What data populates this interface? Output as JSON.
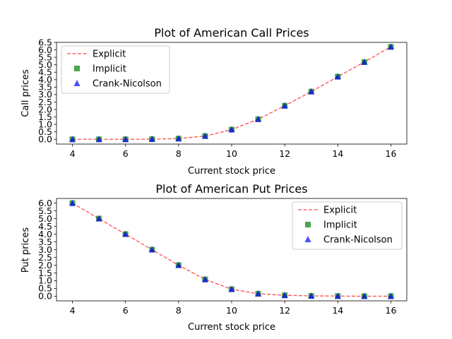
{
  "chart_data": [
    {
      "type": "line",
      "title": "Plot of American Call Prices",
      "xlabel": "Current stock price",
      "ylabel": "Call prices",
      "xlim": [
        3.4,
        16.6
      ],
      "ylim": [
        -0.32,
        6.5
      ],
      "xticks": [
        4,
        6,
        8,
        10,
        12,
        14,
        16
      ],
      "yticks": [
        0.0,
        0.5,
        1.0,
        1.5,
        2.0,
        2.5,
        3.0,
        3.5,
        4.0,
        4.5,
        5.0,
        5.5,
        6.0,
        6.5
      ],
      "grid": false,
      "legend_position": "top-left",
      "x": [
        4,
        5,
        6,
        7,
        8,
        9,
        10,
        11,
        12,
        13,
        14,
        15,
        16
      ],
      "series": [
        {
          "name": "Explicit",
          "style": "dashed-line",
          "color": "#ff0000",
          "values": [
            0.0,
            0.0,
            0.0,
            0.01,
            0.05,
            0.22,
            0.65,
            1.35,
            2.25,
            3.2,
            4.2,
            5.18,
            6.2
          ]
        },
        {
          "name": "Implicit",
          "style": "square-marker",
          "color": "#008000",
          "values": [
            0.0,
            0.0,
            0.0,
            0.01,
            0.05,
            0.22,
            0.65,
            1.35,
            2.25,
            3.2,
            4.2,
            5.18,
            6.2
          ]
        },
        {
          "name": "Crank-Nicolson",
          "style": "triangle-marker",
          "color": "#0000ff",
          "values": [
            0.0,
            0.0,
            0.0,
            0.01,
            0.05,
            0.22,
            0.65,
            1.35,
            2.25,
            3.2,
            4.2,
            5.18,
            6.2
          ]
        }
      ]
    },
    {
      "type": "line",
      "title": "Plot of American Put Prices",
      "xlabel": "Current stock price",
      "ylabel": "Put prices",
      "xlim": [
        3.4,
        16.6
      ],
      "ylim": [
        -0.3,
        6.3
      ],
      "xticks": [
        4,
        6,
        8,
        10,
        12,
        14,
        16
      ],
      "yticks": [
        0.0,
        0.5,
        1.0,
        1.5,
        2.0,
        2.5,
        3.0,
        3.5,
        4.0,
        4.5,
        5.0,
        5.5,
        6.0
      ],
      "grid": false,
      "legend_position": "top-right",
      "x": [
        4,
        5,
        6,
        7,
        8,
        9,
        10,
        11,
        12,
        13,
        14,
        15,
        16
      ],
      "series": [
        {
          "name": "Explicit",
          "style": "dashed-line",
          "color": "#ff0000",
          "values": [
            6.0,
            5.0,
            4.0,
            3.0,
            2.0,
            1.08,
            0.45,
            0.16,
            0.06,
            0.02,
            0.01,
            0.0,
            0.0
          ]
        },
        {
          "name": "Implicit",
          "style": "square-marker",
          "color": "#008000",
          "values": [
            6.0,
            5.0,
            4.0,
            3.0,
            2.0,
            1.08,
            0.45,
            0.16,
            0.06,
            0.02,
            0.01,
            0.0,
            0.0
          ]
        },
        {
          "name": "Crank-Nicolson",
          "style": "triangle-marker",
          "color": "#0000ff",
          "values": [
            6.0,
            5.0,
            4.0,
            3.0,
            2.0,
            1.08,
            0.45,
            0.16,
            0.06,
            0.02,
            0.01,
            0.0,
            0.0
          ]
        }
      ]
    }
  ]
}
